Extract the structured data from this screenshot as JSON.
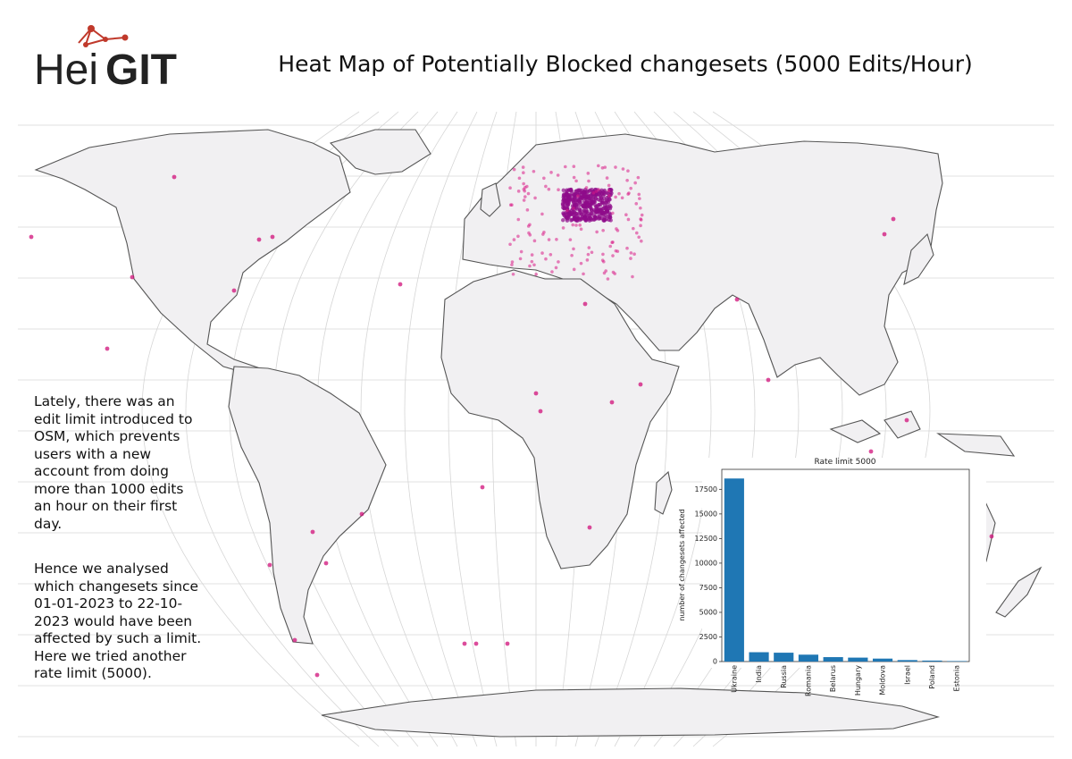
{
  "header": {
    "logo_light": "Hei",
    "logo_bold": "GIT",
    "title": "Heat Map of Potentially Blocked changesets  (5000 Edits/Hour)"
  },
  "description": [
    "Lately, there was an edit limit introduced to OSM, which prevents users with a new account from doing more than 1000 edits an hour on their first day.",
    "Hence we analysed which changesets since 01-01-2023 to 22-10-2023 would have been affected by such a limit. Here we tried another rate limit (5000)."
  ],
  "chart_data": {
    "type": "bar",
    "title": "Rate limit 5000",
    "y_label": "number of changesets affected",
    "categories": [
      "Ukraine",
      "India",
      "Russia",
      "Romania",
      "Belarus",
      "Hungary",
      "Moldova",
      "Israel",
      "Poland",
      "Estonia"
    ],
    "values": [
      18600,
      950,
      900,
      700,
      450,
      400,
      300,
      150,
      100,
      50
    ],
    "color": "#1f77b4",
    "ylim": [
      0,
      19530
    ],
    "yticks": [
      0,
      2500,
      5000,
      7500,
      10000,
      12500,
      15000,
      17500
    ]
  }
}
